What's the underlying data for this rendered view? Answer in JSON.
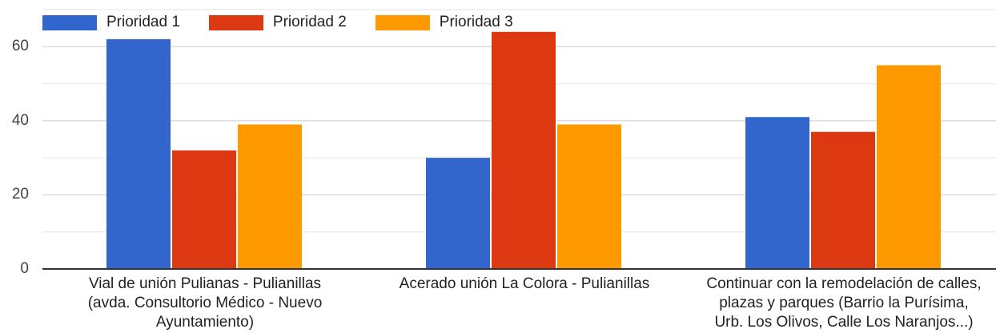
{
  "chart_data": {
    "type": "bar",
    "categories": [
      [
        "Vial de unión Pulianas - Pulianillas",
        "(avda. Consultorio Médico - Nuevo",
        "Ayuntamiento)"
      ],
      [
        "Acerado unión La Colora - Pulianillas"
      ],
      [
        "Continuar con la remodelación de calles,",
        "plazas y parques (Barrio la Purísima,",
        "Urb. Los Olivos, Calle Los Naranjos...)"
      ]
    ],
    "series": [
      {
        "name": "Prioridad 1",
        "color": "#3366cc",
        "values": [
          62,
          30,
          41
        ]
      },
      {
        "name": "Prioridad 2",
        "color": "#dc3912",
        "values": [
          32,
          64,
          37
        ]
      },
      {
        "name": "Prioridad 3",
        "color": "#ff9900",
        "values": [
          39,
          39,
          55
        ]
      }
    ],
    "yticks": [
      "0",
      "20",
      "40",
      "60"
    ],
    "ylim": [
      0,
      70
    ],
    "grid": true,
    "legend": "top-left",
    "title": "",
    "xlabel": "",
    "ylabel": ""
  }
}
